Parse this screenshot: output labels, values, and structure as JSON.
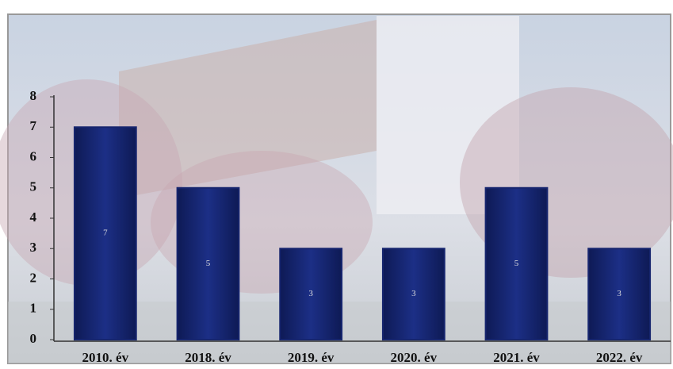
{
  "chart_data": {
    "type": "bar",
    "categories": [
      "2010. év",
      "2018. év",
      "2019. év",
      "2020. év",
      "2021. év",
      "2022. év"
    ],
    "values": [
      7,
      5,
      3,
      3,
      5,
      3
    ],
    "color": "#16256e",
    "ylim": [
      0,
      8
    ],
    "yticks": [
      0,
      1,
      2,
      3,
      4,
      5,
      6,
      7,
      8
    ]
  }
}
